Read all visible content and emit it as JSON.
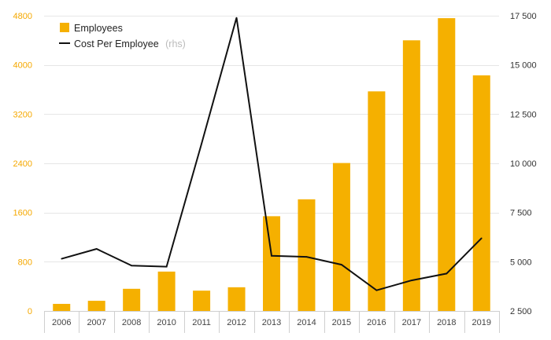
{
  "chart_data": {
    "type": "bar+line",
    "categories": [
      "2006",
      "2007",
      "2008",
      "2010",
      "2011",
      "2012",
      "2013",
      "2014",
      "2015",
      "2016",
      "2017",
      "2018",
      "2019"
    ],
    "series": [
      {
        "name": "Employees",
        "type": "bar",
        "axis": "left",
        "color": "#f5b000",
        "values": [
          115,
          165,
          360,
          640,
          330,
          385,
          1540,
          1815,
          2405,
          3570,
          4400,
          4760,
          3830
        ]
      },
      {
        "name": "Cost Per Employee",
        "name_note": "(rhs)",
        "type": "line",
        "axis": "right",
        "color": "#111111",
        "values": [
          5150,
          5650,
          4800,
          4750,
          11000,
          17400,
          5300,
          5250,
          4850,
          3550,
          4050,
          4400,
          6200
        ]
      }
    ],
    "left_axis": {
      "ylim": [
        0,
        4800
      ],
      "ticks": [
        0,
        800,
        1600,
        2400,
        3200,
        4000,
        4800
      ],
      "tick_labels": [
        "0",
        "800",
        "1600",
        "2400",
        "3200",
        "4000",
        "4800"
      ],
      "color": "#f5a800"
    },
    "right_axis": {
      "ylim": [
        2500,
        17500
      ],
      "ticks": [
        2500,
        5000,
        7500,
        10000,
        12500,
        15000,
        17500
      ],
      "tick_labels": [
        "2 500",
        "5 000",
        "7 500",
        "10 000",
        "12 500",
        "15 000",
        "17 500"
      ]
    },
    "grid": true,
    "legend": {
      "position": "top-left",
      "entries": [
        {
          "label": "Employees",
          "note": ""
        },
        {
          "label": "Cost Per Employee",
          "note": "(rhs)"
        }
      ]
    }
  }
}
